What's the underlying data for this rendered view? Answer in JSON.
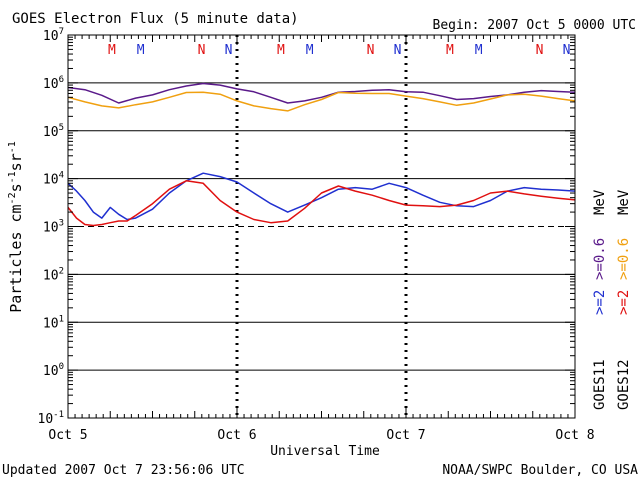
{
  "title": "GOES Electron Flux (5 minute data)",
  "begin": "Begin: 2007 Oct 5 0000 UTC",
  "updated": "Updated 2007 Oct  7 23:56:06 UTC",
  "credit": "NOAA/SWPC Boulder, CO USA",
  "colors": {
    "goes11_ge2": "#2030d0",
    "goes11_ge06": "#5a1a8a",
    "goes12_ge2": "#e01010",
    "goes12_ge06": "#f0a010",
    "marker_M": "#e01010",
    "marker_N": "#2030d0",
    "axes": "#000000"
  },
  "chart_data": {
    "type": "line",
    "title": "GOES Electron Flux (5 minute data)",
    "xlabel": "Universal Time",
    "ylabel": "Particles cm⁻²s⁻¹sr⁻¹",
    "ylabel_parts": {
      "base": "Particles cm",
      "sup1": "-2",
      "mid1": "s",
      "sup2": "-1",
      "mid2": "sr",
      "sup3": "-1"
    },
    "y_scale": "log",
    "ylim": [
      0.1,
      10000000
    ],
    "xlim": [
      0,
      3
    ],
    "x_unit": "days since 2007 Oct 5 0000 UTC",
    "x_ticks": [
      {
        "x": 0,
        "label": "Oct 5"
      },
      {
        "x": 1,
        "label": "Oct 6"
      },
      {
        "x": 2,
        "label": "Oct 7"
      },
      {
        "x": 3,
        "label": "Oct 8"
      }
    ],
    "y_ticks": [
      {
        "exp": -1,
        "base": "10",
        "sup": "-1"
      },
      {
        "exp": 0,
        "base": "10",
        "sup": "0"
      },
      {
        "exp": 1,
        "base": "10",
        "sup": "1"
      },
      {
        "exp": 2,
        "base": "10",
        "sup": "2"
      },
      {
        "exp": 3,
        "base": "10",
        "sup": "3"
      },
      {
        "exp": 4,
        "base": "10",
        "sup": "4"
      },
      {
        "exp": 5,
        "base": "10",
        "sup": "5"
      },
      {
        "exp": 6,
        "base": "10",
        "sup": "6"
      },
      {
        "exp": 7,
        "base": "10",
        "sup": "7"
      }
    ],
    "threshold": 1000,
    "markers": [
      {
        "label": "M",
        "x": 0.26,
        "color": "#e01010"
      },
      {
        "label": "M",
        "x": 0.43,
        "color": "#2030d0"
      },
      {
        "label": "N",
        "x": 0.79,
        "color": "#e01010"
      },
      {
        "label": "N",
        "x": 0.95,
        "color": "#2030d0"
      },
      {
        "label": "M",
        "x": 1.26,
        "color": "#e01010"
      },
      {
        "label": "M",
        "x": 1.43,
        "color": "#2030d0"
      },
      {
        "label": "N",
        "x": 1.79,
        "color": "#e01010"
      },
      {
        "label": "N",
        "x": 1.95,
        "color": "#2030d0"
      },
      {
        "label": "M",
        "x": 2.26,
        "color": "#e01010"
      },
      {
        "label": "M",
        "x": 2.43,
        "color": "#2030d0"
      },
      {
        "label": "N",
        "x": 2.79,
        "color": "#e01010"
      },
      {
        "label": "N",
        "x": 2.95,
        "color": "#2030d0"
      }
    ],
    "legend": {
      "placement": "right",
      "goes11": {
        "sat": "GOES11",
        "ge2": ">=2",
        "ge06": ">=0.6"
      },
      "goes12": {
        "sat": "GOES12",
        "ge2": ">=2",
        "ge06": ">=0.6"
      },
      "unit": "MeV"
    },
    "series": [
      {
        "name": "GOES11 >=0.6 MeV",
        "color": "#5a1a8a",
        "x": [
          0,
          0.1,
          0.2,
          0.3,
          0.4,
          0.5,
          0.6,
          0.7,
          0.8,
          0.9,
          1.0,
          1.1,
          1.2,
          1.3,
          1.4,
          1.5,
          1.6,
          1.7,
          1.8,
          1.9,
          2.0,
          2.1,
          2.2,
          2.3,
          2.4,
          2.5,
          2.6,
          2.7,
          2.8,
          2.9,
          3.0
        ],
        "y": [
          800000,
          720000,
          550000,
          380000,
          480000,
          560000,
          720000,
          860000,
          970000,
          900000,
          750000,
          650000,
          500000,
          380000,
          420000,
          500000,
          640000,
          660000,
          700000,
          720000,
          650000,
          640000,
          540000,
          450000,
          470000,
          520000,
          560000,
          640000,
          690000,
          660000,
          640000
        ]
      },
      {
        "name": "GOES12 >=0.6 MeV",
        "color": "#f0a010",
        "x": [
          0,
          0.1,
          0.2,
          0.3,
          0.4,
          0.5,
          0.6,
          0.7,
          0.8,
          0.9,
          1.0,
          1.1,
          1.2,
          1.3,
          1.4,
          1.5,
          1.6,
          1.7,
          1.8,
          1.9,
          2.0,
          2.1,
          2.2,
          2.3,
          2.4,
          2.5,
          2.6,
          2.7,
          2.8,
          2.9,
          3.0
        ],
        "y": [
          500000,
          400000,
          330000,
          300000,
          350000,
          400000,
          500000,
          630000,
          640000,
          580000,
          420000,
          330000,
          290000,
          260000,
          350000,
          450000,
          630000,
          610000,
          600000,
          600000,
          530000,
          470000,
          400000,
          340000,
          380000,
          460000,
          560000,
          580000,
          530000,
          470000,
          420000
        ]
      },
      {
        "name": "GOES11 >=2 MeV",
        "color": "#2030d0",
        "x": [
          0,
          0.05,
          0.1,
          0.15,
          0.2,
          0.25,
          0.3,
          0.35,
          0.4,
          0.5,
          0.6,
          0.7,
          0.8,
          0.9,
          1.0,
          1.1,
          1.2,
          1.3,
          1.4,
          1.5,
          1.6,
          1.7,
          1.8,
          1.9,
          2.0,
          2.1,
          2.2,
          2.3,
          2.4,
          2.5,
          2.6,
          2.7,
          2.8,
          2.9,
          3.0
        ],
        "y": [
          8000,
          5500,
          3500,
          2000,
          1500,
          2500,
          1800,
          1400,
          1500,
          2300,
          5000,
          9000,
          13000,
          11000,
          8500,
          5000,
          3000,
          2000,
          2800,
          4000,
          6000,
          6500,
          6000,
          8000,
          6500,
          4500,
          3200,
          2700,
          2600,
          3500,
          5500,
          6500,
          6000,
          5800,
          5500
        ]
      },
      {
        "name": "GOES12 >=2 MeV",
        "color": "#e01010",
        "x": [
          0,
          0.05,
          0.1,
          0.15,
          0.2,
          0.25,
          0.3,
          0.35,
          0.4,
          0.5,
          0.6,
          0.7,
          0.8,
          0.9,
          1.0,
          1.1,
          1.2,
          1.3,
          1.4,
          1.5,
          1.6,
          1.7,
          1.8,
          1.9,
          2.0,
          2.1,
          2.2,
          2.3,
          2.4,
          2.5,
          2.6,
          2.7,
          2.8,
          2.9,
          3.0
        ],
        "y": [
          2500,
          1500,
          1100,
          1050,
          1100,
          1200,
          1300,
          1300,
          1700,
          3000,
          6000,
          9000,
          8000,
          3500,
          2000,
          1400,
          1200,
          1300,
          2400,
          5000,
          7000,
          5500,
          4500,
          3500,
          2800,
          2700,
          2600,
          2800,
          3500,
          5000,
          5500,
          4800,
          4300,
          3900,
          3600
        ]
      }
    ]
  }
}
